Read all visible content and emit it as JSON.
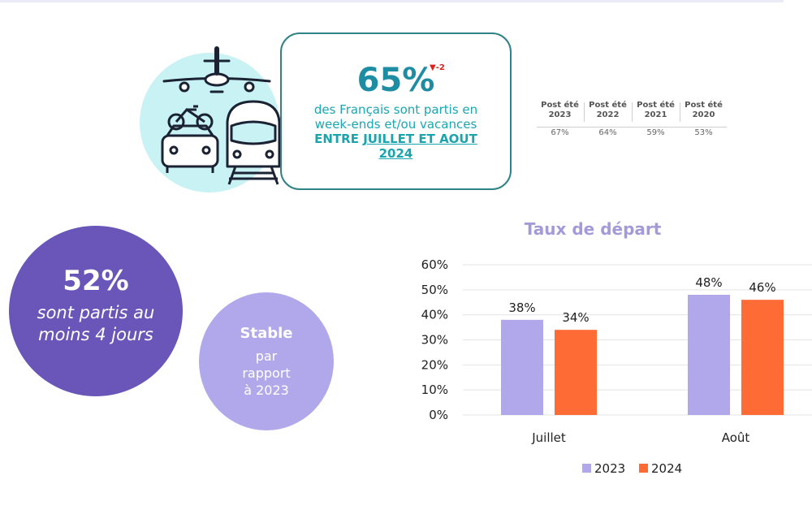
{
  "main_stat": {
    "value": "65%",
    "delta": "▼-2",
    "line1": "des Français sont partis en",
    "line2": "week-ends et/ou vacances",
    "line3_prefix": "ENTRE ",
    "line3_underlined": "JUILLET ET AOUT",
    "line4": "2024"
  },
  "history": [
    {
      "label1": "Post été",
      "label2": "2023",
      "value": "67%"
    },
    {
      "label1": "Post été",
      "label2": "2022",
      "value": "64%"
    },
    {
      "label1": "Post été",
      "label2": "2021",
      "value": "59%"
    },
    {
      "label1": "Post été",
      "label2": "2020",
      "value": "53%"
    }
  ],
  "circle_main": {
    "value": "52%",
    "line1": "sont partis au",
    "line2": "moins 4 jours"
  },
  "circle_small": {
    "head": "Stable",
    "line1": "par",
    "line2": "rapport",
    "line3": "à 2023"
  },
  "colors": {
    "teal": "#2f8286",
    "cyan_light": "#c8f2f3",
    "purple_dark": "#6a56b8",
    "purple_light": "#b0a8ea",
    "bar_2023": "#b0a8ea",
    "bar_2024": "#ff6b35"
  },
  "chart_data": {
    "type": "bar",
    "title": "Taux de départ",
    "categories": [
      "Juillet",
      "Août"
    ],
    "series": [
      {
        "name": "2023",
        "values": [
          38,
          48
        ],
        "color": "#b0a8ea"
      },
      {
        "name": "2024",
        "values": [
          34,
          46
        ],
        "color": "#ff6b35"
      }
    ],
    "ylim": [
      0,
      60
    ],
    "yticks": [
      0,
      10,
      20,
      30,
      40,
      50,
      60
    ],
    "y_format": "percent",
    "legend": "bottom",
    "grid": true
  }
}
